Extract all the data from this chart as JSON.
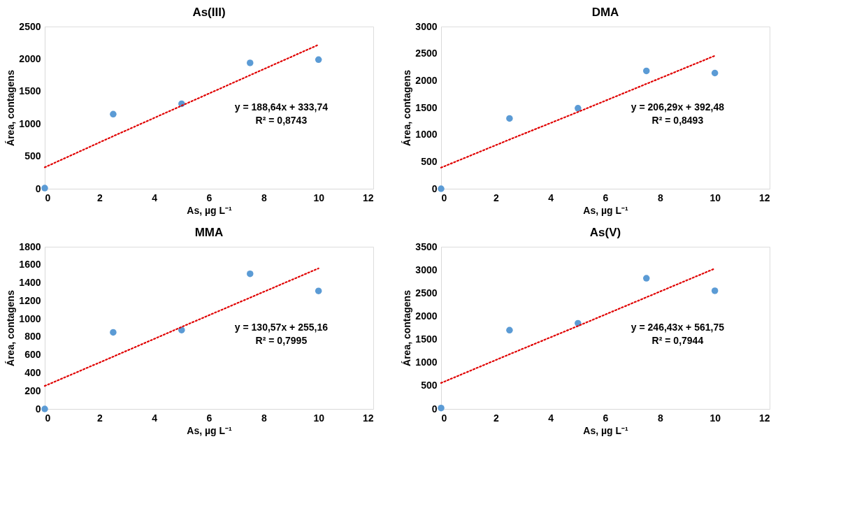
{
  "chart_data": [
    {
      "type": "scatter",
      "title": "As(III)",
      "xlabel": "As, µg L⁻¹",
      "ylabel": "Área, contagens",
      "x": [
        0,
        2.5,
        5,
        7.5,
        10
      ],
      "xlim": [
        0,
        12
      ],
      "xticks": [
        0,
        2,
        4,
        6,
        8,
        10,
        12
      ],
      "ylim": [
        0,
        2500
      ],
      "yticks": [
        0,
        500,
        1000,
        1500,
        2000,
        2500
      ],
      "grid": false,
      "annotations": [
        "y = 188,64x + 333,74",
        "R² = 0,8743"
      ],
      "series": [
        {
          "color": "#5b9bd5",
          "marker": "circle",
          "values": [
            10,
            1150,
            1310,
            1940,
            1990
          ]
        },
        {
          "type": "line",
          "color": "#e00000",
          "line_style": "dotted",
          "values": [
            330,
            810,
            1280,
            1750,
            2220
          ]
        }
      ]
    },
    {
      "type": "scatter",
      "title": "DMA",
      "xlabel": "As, µg L⁻¹",
      "ylabel": "Área, contagens",
      "x": [
        0,
        2.5,
        5,
        7.5,
        10
      ],
      "xlim": [
        0,
        12
      ],
      "xticks": [
        0,
        2,
        4,
        6,
        8,
        10,
        12
      ],
      "ylim": [
        0,
        3000
      ],
      "yticks": [
        0,
        500,
        1000,
        1500,
        2000,
        2500,
        3000
      ],
      "grid": false,
      "annotations": [
        "y = 206,29x + 392,48",
        "R² = 0,8493"
      ],
      "series": [
        {
          "color": "#5b9bd5",
          "marker": "circle",
          "values": [
            0,
            1300,
            1490,
            2180,
            2140
          ]
        },
        {
          "type": "line",
          "color": "#e00000",
          "line_style": "dotted",
          "values": [
            390,
            910,
            1420,
            1940,
            2460
          ]
        }
      ]
    },
    {
      "type": "scatter",
      "title": "MMA",
      "xlabel": "As, µg L⁻¹",
      "ylabel": "Área, contagens",
      "x": [
        0,
        2.5,
        5,
        7.5,
        10
      ],
      "xlim": [
        0,
        12
      ],
      "xticks": [
        0,
        2,
        4,
        6,
        8,
        10,
        12
      ],
      "ylim": [
        0,
        1800
      ],
      "yticks": [
        0,
        200,
        400,
        600,
        800,
        1000,
        1200,
        1400,
        1600,
        1800
      ],
      "grid": false,
      "annotations": [
        "y = 130,57x + 255,16",
        "R² = 0,7995"
      ],
      "series": [
        {
          "color": "#5b9bd5",
          "marker": "circle",
          "values": [
            0,
            850,
            875,
            1500,
            1310
          ]
        },
        {
          "type": "line",
          "color": "#e00000",
          "line_style": "dotted",
          "values": [
            255,
            580,
            910,
            1235,
            1560
          ]
        }
      ]
    },
    {
      "type": "scatter",
      "title": "As(V)",
      "xlabel": "As, µg L⁻¹",
      "ylabel": "Área, contagens",
      "x": [
        0,
        2.5,
        5,
        7.5,
        10
      ],
      "xlim": [
        0,
        12
      ],
      "xticks": [
        0,
        2,
        4,
        6,
        8,
        10,
        12
      ],
      "ylim": [
        0,
        3500
      ],
      "yticks": [
        0,
        500,
        1000,
        1500,
        2000,
        2500,
        3000,
        3500
      ],
      "grid": false,
      "annotations": [
        "y = 246,43x + 561,75",
        "R² = 0,7944"
      ],
      "series": [
        {
          "color": "#5b9bd5",
          "marker": "circle",
          "values": [
            20,
            1700,
            1850,
            2820,
            2550
          ]
        },
        {
          "type": "line",
          "color": "#e00000",
          "line_style": "dotted",
          "values": [
            560,
            1180,
            1790,
            2410,
            3030
          ]
        }
      ]
    }
  ]
}
